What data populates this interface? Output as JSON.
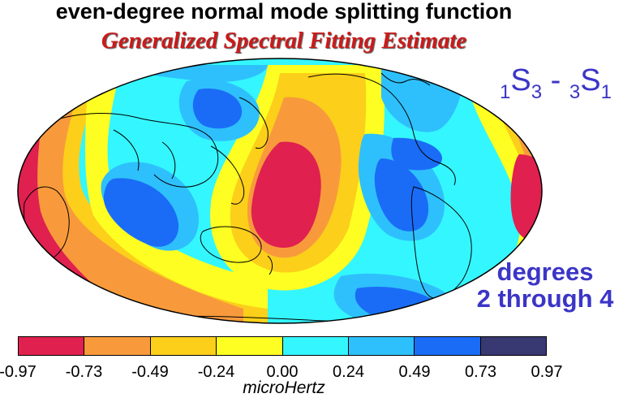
{
  "title": "even-degree normal mode splitting function",
  "subtitle": "Generalized Spectral Fitting Estimate",
  "mode": {
    "n1": "1",
    "l1": "S",
    "d1": "3",
    "sep": " - ",
    "n2": "3",
    "l2": "S",
    "d2": "1"
  },
  "degrees": {
    "line1": "degrees",
    "line2": "2 through 4"
  },
  "colorbar": {
    "ticks": [
      "-0.97",
      "-0.73",
      "-0.49",
      "-0.24",
      "0.00",
      "0.24",
      "0.49",
      "0.73",
      "0.97"
    ],
    "colors": [
      "#e0204e",
      "#f89a3c",
      "#fccf1a",
      "#fefe22",
      "#34f6ff",
      "#2ec0fc",
      "#1a6cf7",
      "#383872"
    ],
    "unit": "microHertz"
  },
  "map": {
    "projection": "hammer-aitoff",
    "colors": {
      "red": "#e0204e",
      "orange": "#f89a3c",
      "gold": "#fccf1a",
      "yellow": "#fefe22",
      "cyan": "#34f6ff",
      "lightblue": "#2ec0fc",
      "blue": "#1a6cf7",
      "navy": "#383872"
    }
  }
}
